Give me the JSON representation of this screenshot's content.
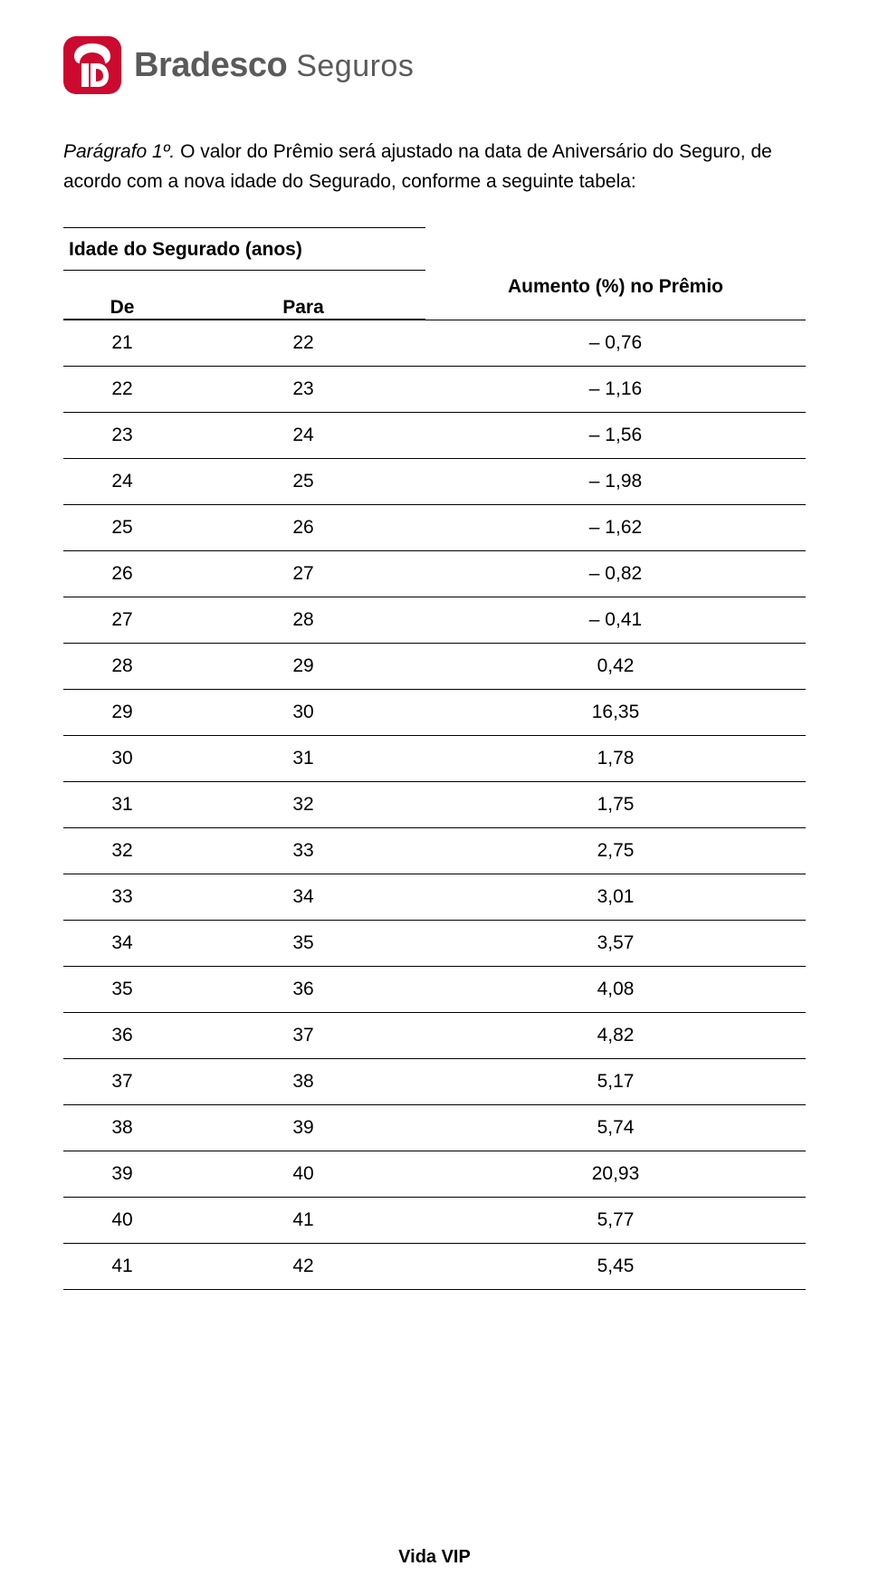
{
  "logo": {
    "brand": "Bradesco",
    "sub": "Seguros",
    "icon_bg": "#cc092f",
    "icon_fg": "#ffffff"
  },
  "intro": {
    "label": "Parágrafo 1º.",
    "text": " O valor do Prêmio será ajustado na data de Aniversário do Seguro, de acordo com a nova idade do Segurado, conforme a seguinte tabela:"
  },
  "table": {
    "group_header": "Idade do Segurado (anos)",
    "col_de": "De",
    "col_para": "Para",
    "col_aumento": "Aumento (%) no Prêmio",
    "rows": [
      {
        "de": "21",
        "para": "22",
        "aum": "– 0,76"
      },
      {
        "de": "22",
        "para": "23",
        "aum": "– 1,16"
      },
      {
        "de": "23",
        "para": "24",
        "aum": "– 1,56"
      },
      {
        "de": "24",
        "para": "25",
        "aum": "– 1,98"
      },
      {
        "de": "25",
        "para": "26",
        "aum": "– 1,62"
      },
      {
        "de": "26",
        "para": "27",
        "aum": "– 0,82"
      },
      {
        "de": "27",
        "para": "28",
        "aum": "– 0,41"
      },
      {
        "de": "28",
        "para": "29",
        "aum": "0,42"
      },
      {
        "de": "29",
        "para": "30",
        "aum": "16,35"
      },
      {
        "de": "30",
        "para": "31",
        "aum": "1,78"
      },
      {
        "de": "31",
        "para": "32",
        "aum": "1,75"
      },
      {
        "de": "32",
        "para": "33",
        "aum": "2,75"
      },
      {
        "de": "33",
        "para": "34",
        "aum": "3,01"
      },
      {
        "de": "34",
        "para": "35",
        "aum": "3,57"
      },
      {
        "de": "35",
        "para": "36",
        "aum": "4,08"
      },
      {
        "de": "36",
        "para": "37",
        "aum": "4,82"
      },
      {
        "de": "37",
        "para": "38",
        "aum": "5,17"
      },
      {
        "de": "38",
        "para": "39",
        "aum": "5,74"
      },
      {
        "de": "39",
        "para": "40",
        "aum": "20,93"
      },
      {
        "de": "40",
        "para": "41",
        "aum": "5,77"
      },
      {
        "de": "41",
        "para": "42",
        "aum": "5,45"
      }
    ]
  },
  "footer": "Vida VIP"
}
